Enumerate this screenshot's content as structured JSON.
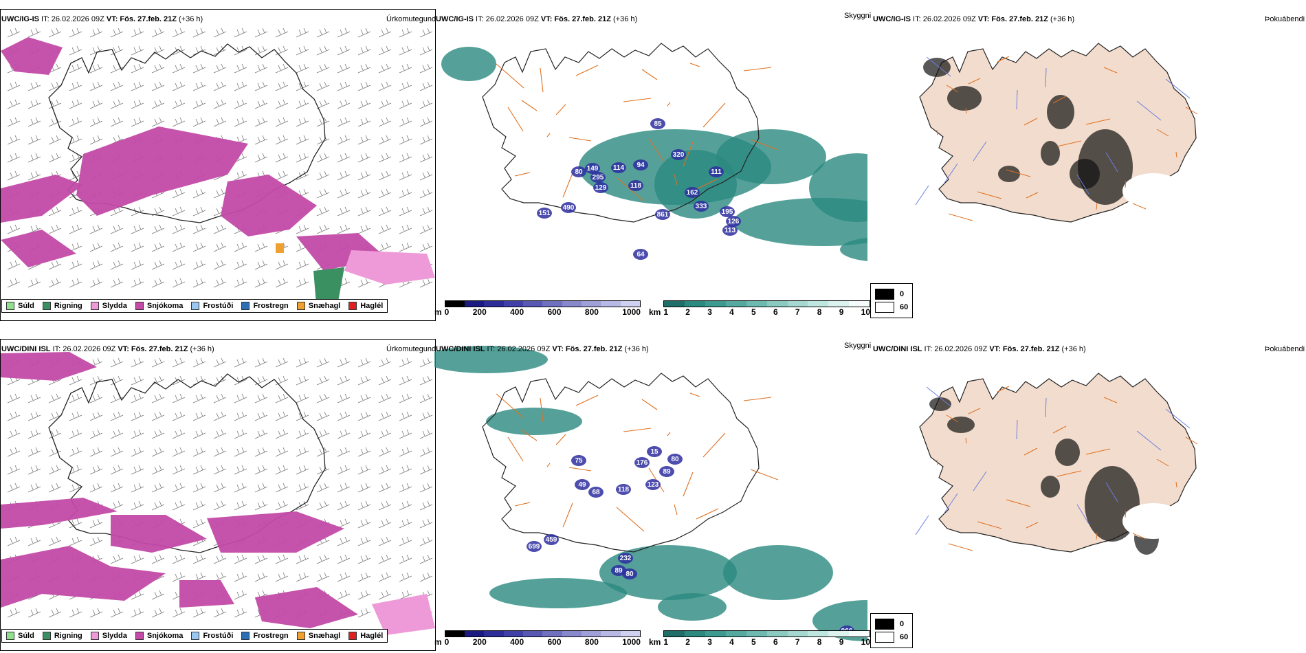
{
  "colors": {
    "snow": "#c34aa6",
    "sleet": "#ee9ad8",
    "rain": "#3a9060",
    "drizzle": "#8fe08f",
    "freezing_drizzle": "#9ac8f0",
    "freezing_rain": "#2d6fb5",
    "graupel": "#f0a030",
    "hail": "#e02020",
    "cloud_teal": "#2b8a80",
    "cloud_blue": "#2e2ea0",
    "roads": "#e07020",
    "land": "#f2dccd",
    "rivers": "#6c7ee0",
    "fog_dark": "#111111"
  },
  "rows": [
    {
      "model": "UWC/IG-IS",
      "panels": [
        {
          "title_model": "UWC/IG-IS",
          "title_it": " IT: 26.02.2026 09Z ",
          "title_vt_label": "VT: ",
          "title_vt": "Fös. 27.feb. 21Z",
          "title_lead": " (+36 h)",
          "field": "Úrkomutegund"
        },
        {
          "title_model": "UWC/IG-IS",
          "title_it": " IT: 26.02.2026 09Z ",
          "title_vt_label": "VT: ",
          "title_vt": "Fös. 27.feb. 21Z",
          "title_lead": " (+36 h)",
          "field": "Skyggni"
        },
        {
          "title_model": "UWC/IG-IS",
          "title_it": " IT: 26.02.2026 09Z ",
          "title_vt_label": "VT: ",
          "title_vt": "Fös. 27.feb. 21Z",
          "title_lead": " (+36 h)",
          "field": "Þokuábendi"
        }
      ],
      "cloud_values": [
        "85",
        "94",
        "320",
        "149",
        "114",
        "295",
        "129",
        "118",
        "111",
        "162",
        "861",
        "333",
        "195",
        "126",
        "113",
        "490",
        "151",
        "64",
        "80"
      ]
    },
    {
      "model": "UWC/DINI ISL",
      "panels": [
        {
          "title_model": "UWC/DINI ISL",
          "title_it": " IT: 26.02.2026 09Z ",
          "title_vt_label": "VT: ",
          "title_vt": "Fös. 27.feb. 21Z",
          "title_lead": " (+36 h)",
          "field": "Úrkomutegund"
        },
        {
          "title_model": "UWC/DINI ISL",
          "title_it": " IT: 26.02.2026 09Z ",
          "title_vt_label": "VT: ",
          "title_vt": "Fös. 27.feb. 21Z",
          "title_lead": " (+36 h)",
          "field": "Skyggni"
        },
        {
          "title_model": "UWC/DINI ISL",
          "title_it": " IT: 26.02.2026 09Z ",
          "title_vt_label": "VT: ",
          "title_vt": "Fös. 27.feb. 21Z",
          "title_lead": " (+36 h)",
          "field": "Þokuábendi"
        }
      ],
      "cloud_values": [
        "15",
        "75",
        "176",
        "123",
        "118",
        "80",
        "89",
        "68",
        "459",
        "699",
        "232",
        "89",
        "80",
        "966",
        "49"
      ]
    }
  ],
  "precip_legend": [
    "Súld",
    "Rigning",
    "Slydda",
    "Snjókoma",
    "Frostúði",
    "Frostregn",
    "Snæhagl",
    "Haglél"
  ],
  "scale_m": {
    "unit": "m",
    "ticks": [
      "0",
      "200",
      "400",
      "600",
      "800",
      "1000"
    ]
  },
  "scale_km": {
    "unit": "km",
    "ticks": [
      "1",
      "2",
      "3",
      "4",
      "5",
      "6",
      "7",
      "8",
      "9",
      "10"
    ]
  },
  "fog_legend": [
    "0",
    "60"
  ]
}
